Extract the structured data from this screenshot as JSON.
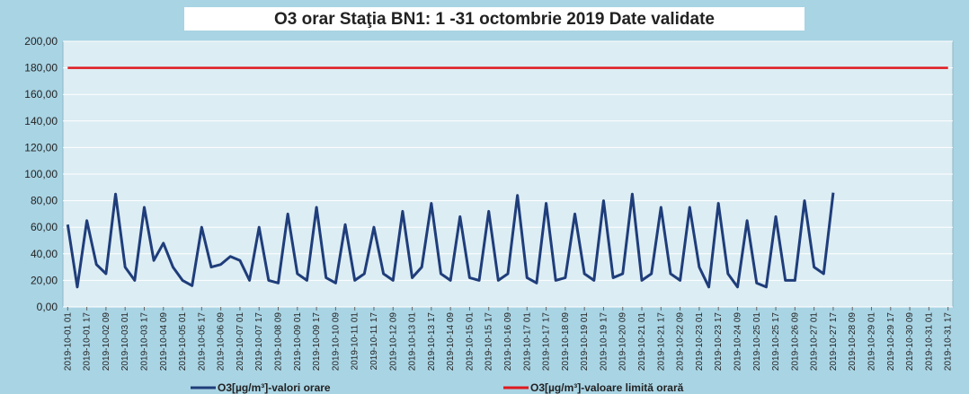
{
  "chart_data": {
    "type": "line",
    "title": "O3 orar Staţia BN1: 1 -31 octombrie 2019 Date validate",
    "categories": [
      "2019-10-01 01",
      null,
      "2019-10-01 17",
      null,
      "2019-10-02 09",
      null,
      "2019-10-03 01",
      null,
      "2019-10-03 17",
      null,
      "2019-10-04 09",
      null,
      "2019-10-05 01",
      null,
      "2019-10-05 17",
      null,
      "2019-10-06 09",
      null,
      "2019-10-07 01",
      null,
      "2019-10-07 17",
      null,
      "2019-10-08 09",
      null,
      "2019-10-09 01",
      null,
      "2019-10-09 17",
      null,
      "2019-10-10 09",
      null,
      "2019-10-11 01",
      null,
      "2019-10-11 17",
      null,
      "2019-10-12 09",
      null,
      "2019-10-13 01",
      null,
      "2019-10-13 17",
      null,
      "2019-10-14 09",
      null,
      "2019-10-15 01",
      null,
      "2019-10-15 17",
      null,
      "2019-10-16 09",
      null,
      "2019-10-17 01",
      null,
      "2019-10-17 17",
      null,
      "2019-10-18 09",
      null,
      "2019-10-19 01",
      null,
      "2019-10-19 17",
      null,
      "2019-10-20 09",
      null,
      "2019-10-21 01",
      null,
      "2019-10-21 17",
      null,
      "2019-10-22 09",
      null,
      "2019-10-23 01",
      null,
      "2019-10-23 17",
      null,
      "2019-10-24 09",
      null,
      "2019-10-25 01",
      null,
      "2019-10-25 17",
      null,
      "2019-10-26 09",
      null,
      "2019-10-27 01",
      null,
      "2019-10-27 17",
      null,
      "2019-10-28 09",
      null,
      "2019-10-29 01",
      null,
      "2019-10-29 17",
      null,
      "2019-10-30 09",
      null,
      "2019-10-31 01",
      null,
      "2019-10-31 17"
    ],
    "series": [
      {
        "name": "O3[µg/m³]-valori orare",
        "color": "#1f3d7a",
        "values": [
          62,
          15,
          65,
          32,
          25,
          85,
          30,
          20,
          75,
          35,
          48,
          30,
          20,
          16,
          60,
          30,
          32,
          38,
          35,
          20,
          60,
          20,
          18,
          70,
          25,
          20,
          75,
          22,
          18,
          62,
          20,
          25,
          60,
          25,
          20,
          72,
          22,
          30,
          78,
          25,
          20,
          68,
          22,
          20,
          72,
          20,
          25,
          84,
          22,
          18,
          78,
          20,
          22,
          70,
          25,
          20,
          80,
          22,
          25,
          85,
          20,
          25,
          75,
          25,
          20,
          75,
          30,
          15,
          78,
          25,
          15,
          65,
          18,
          15,
          68,
          20,
          20,
          80,
          30,
          25,
          86,
          null,
          null,
          null,
          null,
          null,
          null,
          null,
          null,
          null,
          null,
          null,
          null
        ]
      },
      {
        "name": "O3[µg/m³]-valoare limită orară",
        "color": "#e0191e",
        "values": [
          180,
          180,
          180,
          180,
          180,
          180,
          180,
          180,
          180,
          180,
          180,
          180,
          180,
          180,
          180,
          180,
          180,
          180,
          180,
          180,
          180,
          180,
          180,
          180,
          180,
          180,
          180,
          180,
          180,
          180,
          180,
          180,
          180,
          180,
          180,
          180,
          180,
          180,
          180,
          180,
          180,
          180,
          180,
          180,
          180,
          180,
          180,
          180,
          180,
          180,
          180,
          180,
          180,
          180,
          180,
          180,
          180,
          180,
          180,
          180,
          180,
          180,
          180,
          180,
          180,
          180,
          180,
          180,
          180,
          180,
          180,
          180,
          180,
          180,
          180,
          180,
          180,
          180,
          180,
          180,
          180,
          180,
          180,
          180,
          180,
          180,
          180,
          180,
          180,
          180,
          180,
          180,
          180
        ]
      }
    ],
    "ylim": [
      0,
      200
    ],
    "yticks": [
      {
        "value": 0,
        "label": "0,00"
      },
      {
        "value": 20,
        "label": "20,00"
      },
      {
        "value": 40,
        "label": "40,00"
      },
      {
        "value": 60,
        "label": "60,00"
      },
      {
        "value": 80,
        "label": "80,00"
      },
      {
        "value": 100,
        "label": "100,00"
      },
      {
        "value": 120,
        "label": "120,00"
      },
      {
        "value": 140,
        "label": "140,00"
      },
      {
        "value": 160,
        "label": "160,00"
      },
      {
        "value": 180,
        "label": "180,00"
      },
      {
        "value": 200,
        "label": "200,00"
      }
    ],
    "grid": true,
    "legend": "bottom"
  }
}
